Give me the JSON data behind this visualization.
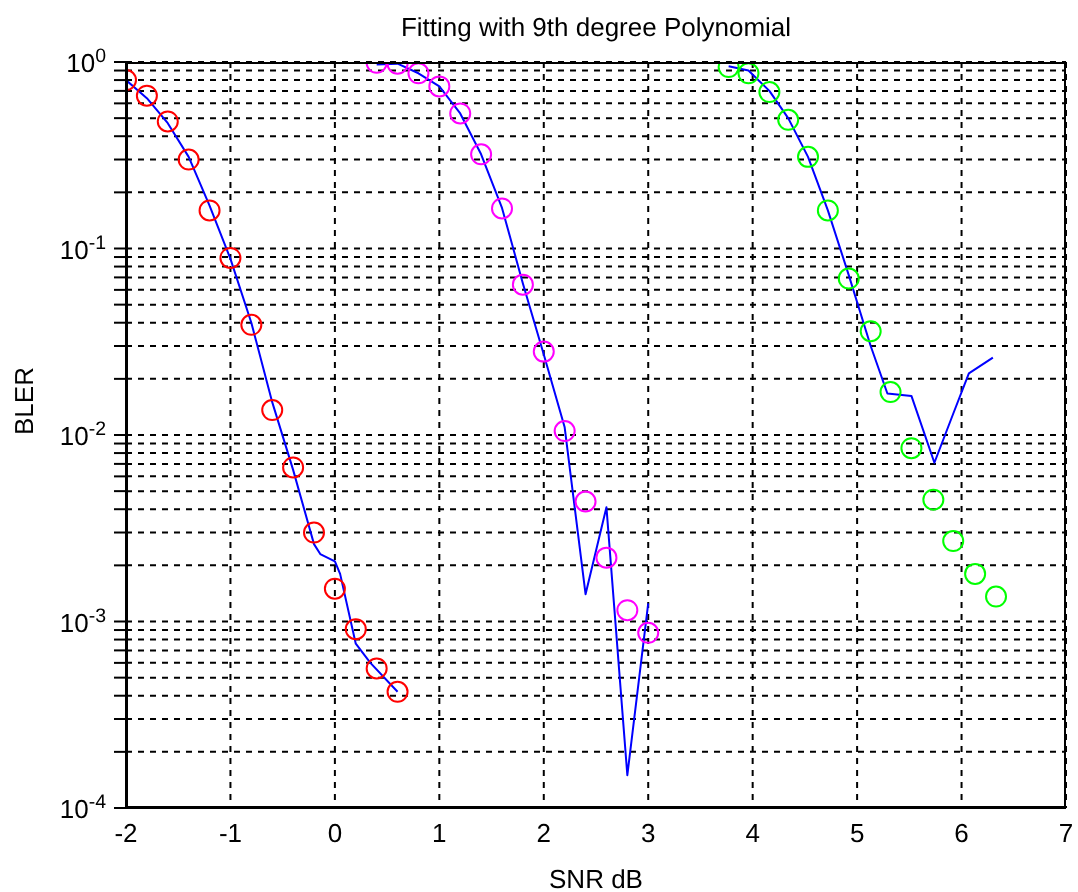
{
  "chart_data": {
    "type": "scatter",
    "title": "Fitting with 9th degree Polynomial",
    "xlabel": "SNR dB",
    "ylabel": "BLER",
    "log": "y",
    "grid": true,
    "legend": false,
    "xlim": [
      -2,
      7
    ],
    "xticks": [
      -2,
      -1,
      0,
      1,
      2,
      3,
      4,
      5,
      6,
      7
    ],
    "ylim": [
      0.0001,
      1
    ],
    "yticks": [
      {
        "value": 0.0001,
        "label": "10$^{-4}$"
      },
      {
        "value": 0.0002,
        "label": null
      },
      {
        "value": 0.0003,
        "label": null
      },
      {
        "value": 0.0004,
        "label": null
      },
      {
        "value": 0.0005,
        "label": null
      },
      {
        "value": 0.0006,
        "label": null
      },
      {
        "value": 0.0007,
        "label": null
      },
      {
        "value": 0.0008,
        "label": null
      },
      {
        "value": 0.0009,
        "label": null
      },
      {
        "value": 0.001,
        "label": "10$^{-3}$"
      },
      {
        "value": 0.002,
        "label": null
      },
      {
        "value": 0.003,
        "label": null
      },
      {
        "value": 0.004,
        "label": null
      },
      {
        "value": 0.005,
        "label": null
      },
      {
        "value": 0.006,
        "label": null
      },
      {
        "value": 0.007,
        "label": null
      },
      {
        "value": 0.008,
        "label": null
      },
      {
        "value": 0.009,
        "label": null
      },
      {
        "value": 0.01,
        "label": "10$^{-2}$"
      },
      {
        "value": 0.02,
        "label": null
      },
      {
        "value": 0.03,
        "label": null
      },
      {
        "value": 0.04,
        "label": null
      },
      {
        "value": 0.05,
        "label": null
      },
      {
        "value": 0.06,
        "label": null
      },
      {
        "value": 0.07,
        "label": null
      },
      {
        "value": 0.08,
        "label": null
      },
      {
        "value": 0.09,
        "label": null
      },
      {
        "value": 0.1,
        "label": "10$^{-1}$"
      },
      {
        "value": 0.2,
        "label": null
      },
      {
        "value": 0.3,
        "label": null
      },
      {
        "value": 0.4,
        "label": null
      },
      {
        "value": 0.5,
        "label": null
      },
      {
        "value": 0.6,
        "label": null
      },
      {
        "value": 0.7,
        "label": null
      },
      {
        "value": 0.8,
        "label": null
      },
      {
        "value": 0.9,
        "label": null
      },
      {
        "value": 1,
        "label": "10$^{0}$"
      }
    ],
    "series": [
      {
        "marker": "circle",
        "color": "#ff0000",
        "x": [
          -2,
          -1.8,
          -1.6,
          -1.4,
          -1.2,
          -1,
          -0.8,
          -0.6,
          -0.4,
          -0.2,
          0,
          0.2,
          0.4,
          0.6
        ],
        "values": [
          0.8,
          0.66,
          0.48,
          0.3,
          0.16,
          0.089,
          0.039,
          0.0136,
          0.0067,
          0.003,
          0.0015,
          0.00091,
          0.00056,
          0.00042
        ]
      },
      {
        "type": "line",
        "marker": "none",
        "line_style": "solid",
        "color": "#0000ff",
        "x": [
          -2,
          -1.8,
          -1.6,
          -1.4,
          -1.2,
          -1,
          -0.8,
          -0.6,
          -0.4,
          -0.2,
          -0.14,
          0,
          0.05,
          0.2,
          0.34,
          0.6
        ],
        "values": [
          0.8,
          0.64,
          0.47,
          0.31,
          0.17,
          0.088,
          0.04,
          0.015,
          0.0065,
          0.0026,
          0.0023,
          0.0021,
          0.0018,
          0.00076,
          0.0006,
          0.00042
        ]
      },
      {
        "marker": "circle",
        "color": "#ff00ff",
        "x": [
          0.4,
          0.6,
          0.8,
          1,
          1.2,
          1.4,
          1.6,
          1.8,
          2,
          2.2,
          2.4,
          2.6,
          2.8,
          3
        ],
        "values": [
          0.99,
          0.98,
          0.87,
          0.74,
          0.53,
          0.32,
          0.164,
          0.064,
          0.028,
          0.0105,
          0.0044,
          0.0022,
          0.00115,
          0.00087
        ]
      },
      {
        "type": "line",
        "marker": "none",
        "line_style": "solid",
        "color": "#0000ff",
        "x": [
          0.4,
          0.6,
          0.8,
          1,
          1.2,
          1.4,
          1.6,
          1.8,
          2,
          2.2,
          2.4,
          2.6,
          2.8,
          3
        ],
        "values": [
          0.97,
          0.98,
          0.87,
          0.74,
          0.53,
          0.32,
          0.165,
          0.065,
          0.027,
          0.011,
          0.0014,
          0.0041,
          0.00015,
          0.00125
        ]
      },
      {
        "marker": "circle",
        "color": "#00ff00",
        "x": [
          3.77,
          3.96,
          4.16,
          4.34,
          4.53,
          4.72,
          4.92,
          5.13,
          5.32,
          5.52,
          5.73,
          5.92,
          6.13,
          6.33
        ],
        "values": [
          0.94,
          0.87,
          0.69,
          0.49,
          0.31,
          0.16,
          0.069,
          0.036,
          0.017,
          0.0085,
          0.0045,
          0.0027,
          0.0018,
          0.00136
        ]
      },
      {
        "type": "line",
        "marker": "none",
        "line_style": "solid",
        "color": "#0000ff",
        "x": [
          3.77,
          3.96,
          4.16,
          4.34,
          4.53,
          4.72,
          4.92,
          5.13,
          5.29,
          5.52,
          5.74,
          5.92,
          6.07,
          6.3
        ],
        "values": [
          0.95,
          0.9,
          0.7,
          0.5,
          0.31,
          0.16,
          0.072,
          0.03,
          0.0167,
          0.0162,
          0.0071,
          0.013,
          0.0214,
          0.026
        ]
      }
    ]
  }
}
